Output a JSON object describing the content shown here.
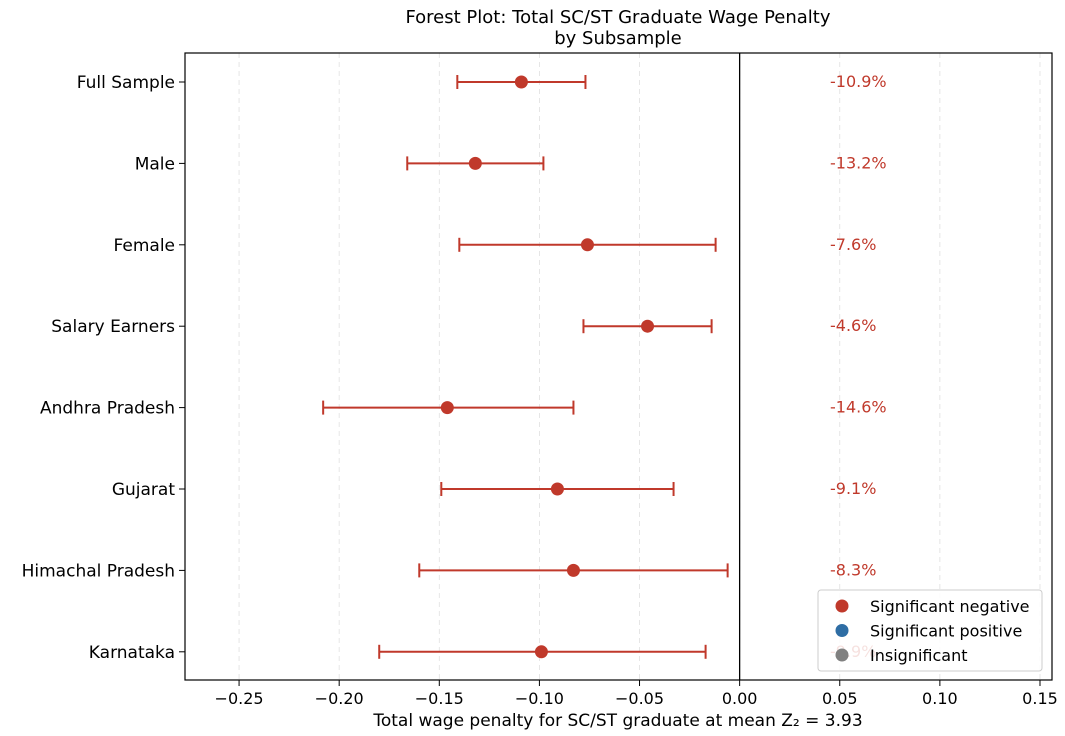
{
  "chart_data": {
    "type": "scatter",
    "title_lines": [
      "Forest Plot: Total SC/ST Graduate Wage Penalty",
      "by Subsample"
    ],
    "xlabel": "Total wage penalty for SC/ST graduate at mean Z₂ = 3.93",
    "ylabel": "",
    "xlim": [
      -0.277,
      0.156
    ],
    "xticks": [
      -0.25,
      -0.2,
      -0.15,
      -0.1,
      -0.05,
      0.0,
      0.05,
      0.1,
      0.15
    ],
    "xtick_labels": [
      "−0.25",
      "−0.20",
      "−0.15",
      "−0.10",
      "−0.05",
      "0.00",
      "0.05",
      "0.10",
      "0.15"
    ],
    "grid": "vertical dashed",
    "reference_line": 0.0,
    "subsamples": [
      {
        "label": "Full Sample",
        "estimate": -0.109,
        "ci_low": -0.141,
        "ci_high": -0.077,
        "annotation": "-10.9%",
        "status": "Significant negative"
      },
      {
        "label": "Male",
        "estimate": -0.132,
        "ci_low": -0.166,
        "ci_high": -0.098,
        "annotation": "-13.2%",
        "status": "Significant negative"
      },
      {
        "label": "Female",
        "estimate": -0.076,
        "ci_low": -0.14,
        "ci_high": -0.012,
        "annotation": "-7.6%",
        "status": "Significant negative"
      },
      {
        "label": "Salary Earners",
        "estimate": -0.046,
        "ci_low": -0.078,
        "ci_high": -0.014,
        "annotation": "-4.6%",
        "status": "Significant negative"
      },
      {
        "label": "Andhra Pradesh",
        "estimate": -0.146,
        "ci_low": -0.208,
        "ci_high": -0.083,
        "annotation": "-14.6%",
        "status": "Significant negative"
      },
      {
        "label": "Gujarat",
        "estimate": -0.091,
        "ci_low": -0.149,
        "ci_high": -0.033,
        "annotation": "-9.1%",
        "status": "Significant negative"
      },
      {
        "label": "Himachal Pradesh",
        "estimate": -0.083,
        "ci_low": -0.16,
        "ci_high": -0.006,
        "annotation": "-8.3%",
        "status": "Significant negative"
      },
      {
        "label": "Karnataka",
        "estimate": -0.099,
        "ci_low": -0.18,
        "ci_high": -0.017,
        "annotation": "-9.9%",
        "status": "Significant negative"
      }
    ],
    "legend": {
      "placement": "lower-right",
      "entries": [
        {
          "label": "Significant negative",
          "color": "#c0392b"
        },
        {
          "label": "Significant positive",
          "color": "#2e6da4"
        },
        {
          "label": "Insignificant",
          "color": "#808080"
        }
      ]
    },
    "colors": {
      "negative": "#c0392b",
      "positive": "#2e6da4",
      "insignificant": "#808080"
    }
  }
}
